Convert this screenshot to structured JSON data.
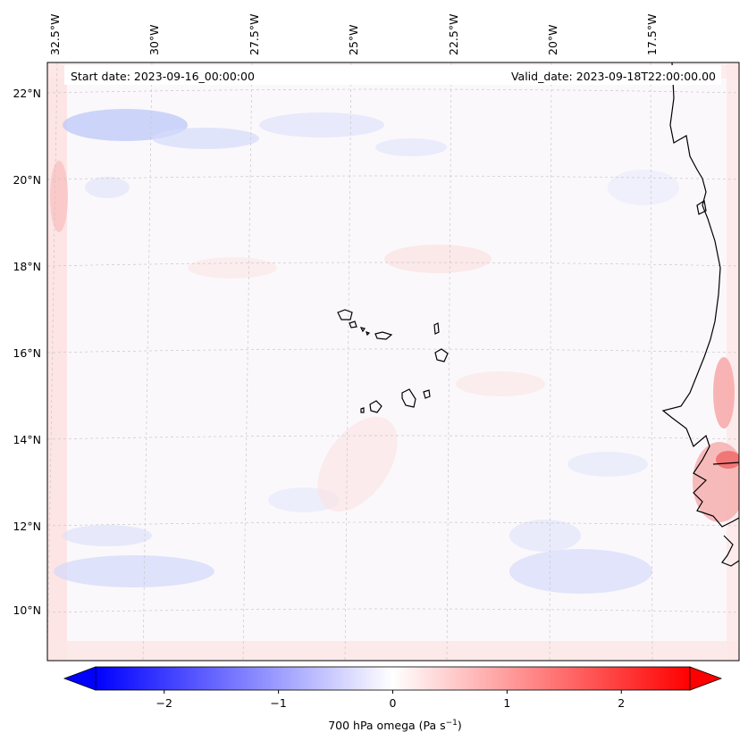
{
  "map": {
    "lon_ticks": [
      "32.5°W",
      "30°W",
      "27.5°W",
      "25°W",
      "22.5°W",
      "20°W",
      "17.5°W"
    ],
    "lat_ticks": [
      "22°N",
      "20°N",
      "18°N",
      "16°N",
      "14°N",
      "12°N",
      "10°N"
    ],
    "start_date": "Start date: 2023-09-16_00:00:00",
    "valid_date": "Valid_date: 2023-09-18T22:00:00.00",
    "variable": "700 hPa omega (Pa s",
    "unit_superscript": "−1",
    "unit_close": ")",
    "colors": {
      "negative": "#0000ff",
      "neutral": "#ffffff",
      "positive": "#ff0000",
      "coast": "#000000"
    }
  },
  "colorbar": {
    "range": [
      -2.6,
      2.6
    ],
    "tick_labels": [
      "−2",
      "−1",
      "0",
      "1",
      "2"
    ],
    "tick_values": [
      -2,
      -1,
      0,
      1,
      2
    ]
  }
}
